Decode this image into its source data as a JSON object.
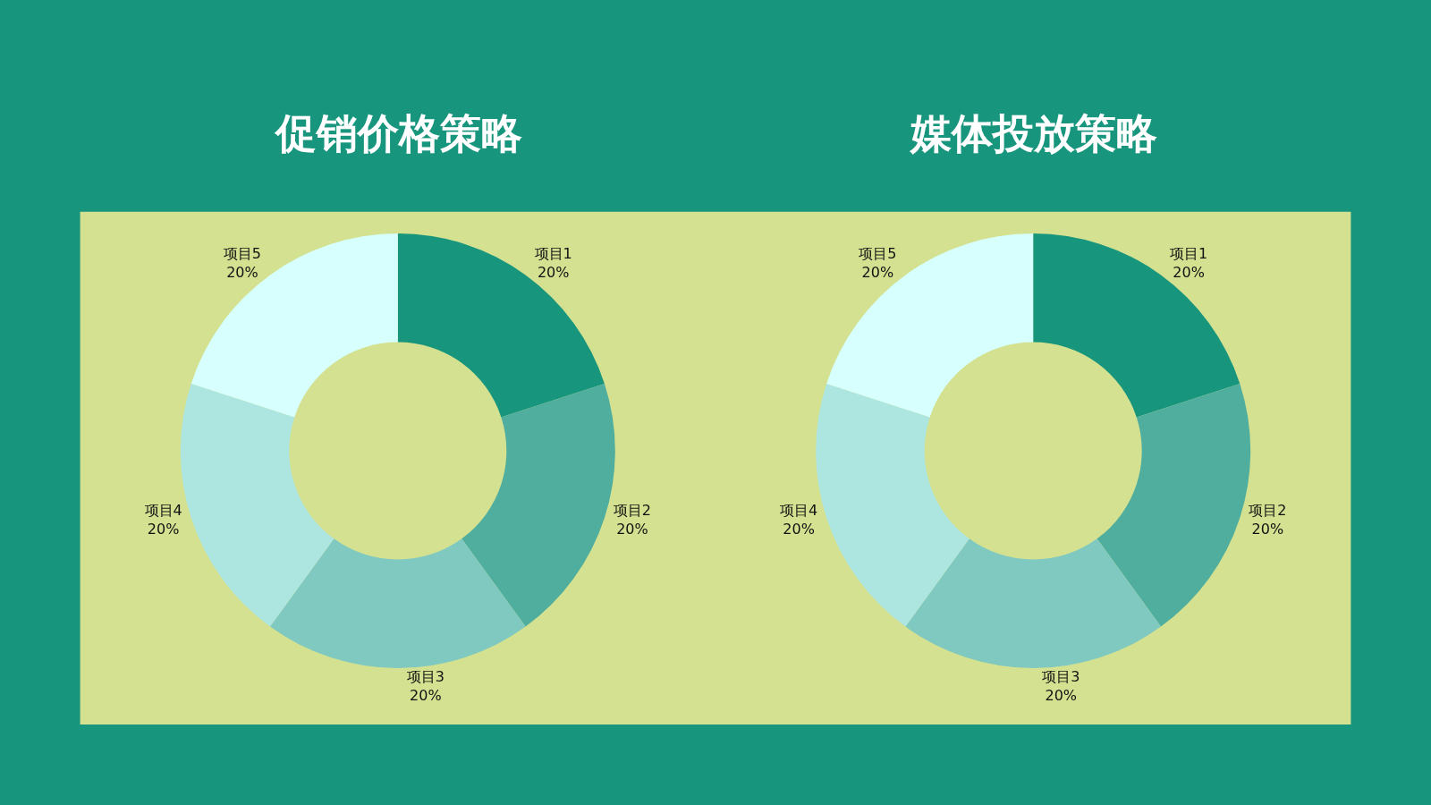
{
  "chart_data": [
    {
      "type": "donut",
      "title": "促销价格策略",
      "categories": [
        "项目1",
        "项目2",
        "项目3",
        "项目4",
        "项目5"
      ],
      "values": [
        20,
        20,
        20,
        20,
        20
      ],
      "value_labels": [
        "20%",
        "20%",
        "20%",
        "20%",
        "20%"
      ],
      "colors": [
        "#17957d",
        "#50ae9f",
        "#80c9c0",
        "#ade5e0",
        "#d6fffe"
      ],
      "legend": false
    },
    {
      "type": "donut",
      "title": "媒体投放策略",
      "categories": [
        "项目1",
        "项目2",
        "项目3",
        "项目4",
        "项目5"
      ],
      "values": [
        20,
        20,
        20,
        20,
        20
      ],
      "value_labels": [
        "20%",
        "20%",
        "20%",
        "20%",
        "20%"
      ],
      "colors": [
        "#17957d",
        "#50ae9f",
        "#80c9c0",
        "#ade5e0",
        "#d6fffe"
      ],
      "legend": false
    }
  ]
}
